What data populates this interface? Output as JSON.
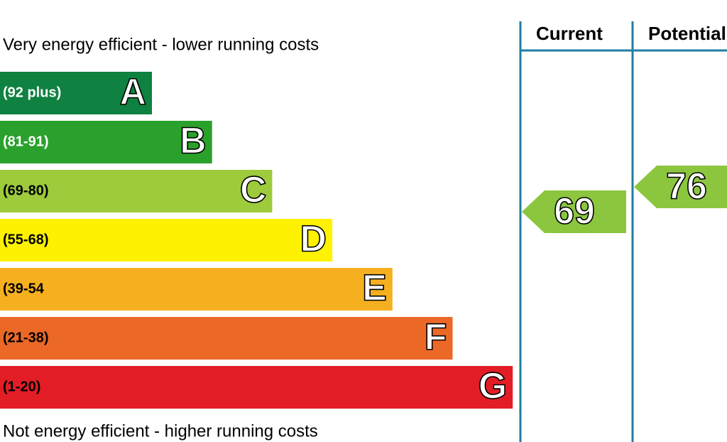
{
  "top_label": "Very energy efficient - lower running costs",
  "bottom_label": "Not energy efficient - higher running costs",
  "bands": [
    {
      "range": "(92 plus)",
      "letter": "A",
      "color": "#0f8140"
    },
    {
      "range": "(81-91)",
      "letter": "B",
      "color": "#2aa12c"
    },
    {
      "range": "(69-80)",
      "letter": "C",
      "color": "#9dcb3c"
    },
    {
      "range": "(55-68)",
      "letter": "D",
      "color": "#fff200"
    },
    {
      "range": "(39-54",
      "letter": "E",
      "color": "#f6b01f"
    },
    {
      "range": "(21-38)",
      "letter": "F",
      "color": "#eb6827"
    },
    {
      "range": "(1-20)",
      "letter": "G",
      "color": "#e31d25"
    }
  ],
  "columns": [
    {
      "header": "Current",
      "value": 69,
      "color": "#8cc63f"
    },
    {
      "header": "Potential",
      "value": 76,
      "color": "#8cc63f"
    }
  ]
}
